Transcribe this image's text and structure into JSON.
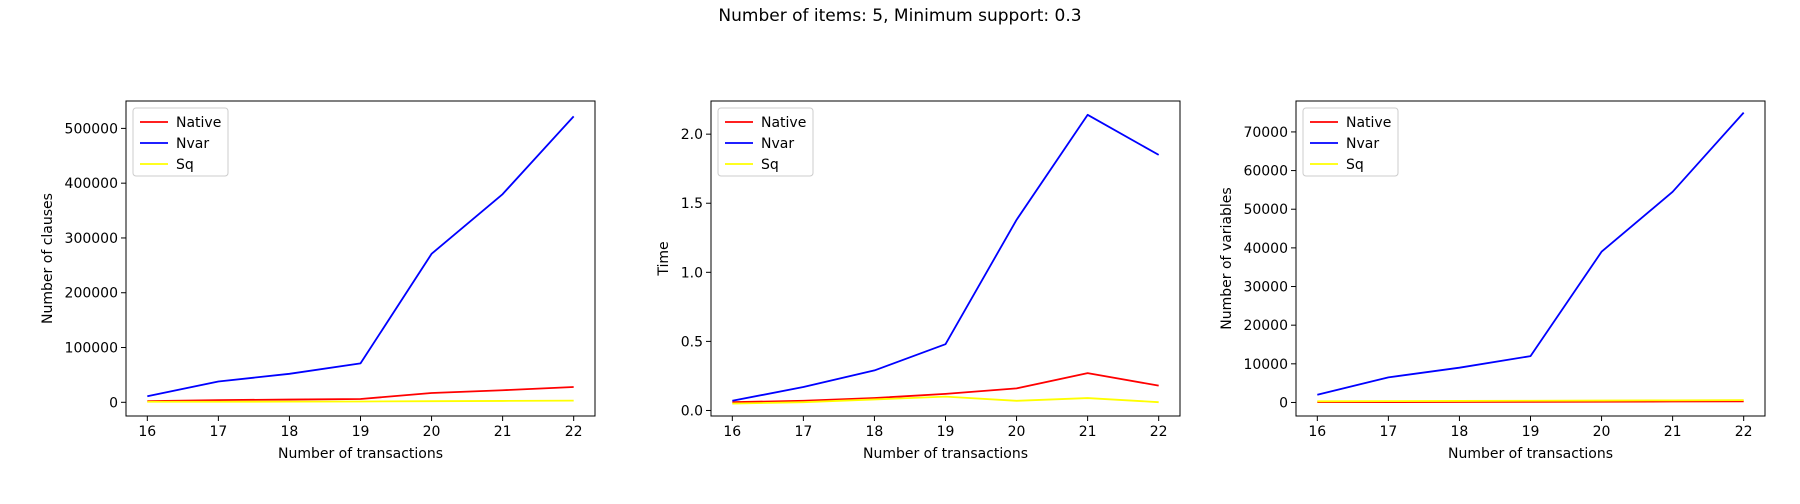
{
  "suptitle": "Number of items: 5, Minimum support: 0.3",
  "colors": {
    "Native": "#ff0000",
    "Nvar": "#0000ff",
    "Sq": "#ffff00"
  },
  "chart_data": [
    {
      "type": "line",
      "xlabel": "Number of transactions",
      "ylabel": "Number of clauses",
      "x": [
        16,
        17,
        18,
        19,
        20,
        21,
        22
      ],
      "xticks": [
        "16",
        "17",
        "18",
        "19",
        "20",
        "21",
        "22"
      ],
      "xlim": [
        15.7,
        22.3
      ],
      "yticks": [
        0,
        100000,
        200000,
        300000,
        400000,
        500000
      ],
      "ytick_labels": [
        "0",
        "100000",
        "200000",
        "300000",
        "400000",
        "500000"
      ],
      "ylim": [
        -25000,
        550000
      ],
      "legend": "upper-left",
      "series": [
        {
          "name": "Native",
          "values": [
            2000,
            4000,
            5000,
            6000,
            17000,
            22000,
            28000
          ]
        },
        {
          "name": "Nvar",
          "values": [
            11000,
            38000,
            52000,
            71000,
            271000,
            380000,
            522000
          ]
        },
        {
          "name": "Sq",
          "values": [
            1000,
            1000,
            1200,
            1500,
            2000,
            2500,
            3000
          ]
        }
      ]
    },
    {
      "type": "line",
      "xlabel": "Number of transactions",
      "ylabel": "Time",
      "x": [
        16,
        17,
        18,
        19,
        20,
        21,
        22
      ],
      "xticks": [
        "16",
        "17",
        "18",
        "19",
        "20",
        "21",
        "22"
      ],
      "xlim": [
        15.7,
        22.3
      ],
      "yticks": [
        0.0,
        0.5,
        1.0,
        1.5,
        2.0
      ],
      "ytick_labels": [
        "0.0",
        "0.5",
        "1.0",
        "1.5",
        "2.0"
      ],
      "ylim": [
        -0.04,
        2.24
      ],
      "legend": "upper-left",
      "series": [
        {
          "name": "Native",
          "values": [
            0.06,
            0.07,
            0.09,
            0.12,
            0.16,
            0.27,
            0.18
          ]
        },
        {
          "name": "Nvar",
          "values": [
            0.07,
            0.17,
            0.29,
            0.48,
            1.38,
            2.14,
            1.85
          ]
        },
        {
          "name": "Sq",
          "values": [
            0.05,
            0.06,
            0.08,
            0.1,
            0.07,
            0.09,
            0.06
          ]
        }
      ]
    },
    {
      "type": "line",
      "xlabel": "Number of transactions",
      "ylabel": "Number of variables",
      "x": [
        16,
        17,
        18,
        19,
        20,
        21,
        22
      ],
      "xticks": [
        "16",
        "17",
        "18",
        "19",
        "20",
        "21",
        "22"
      ],
      "xlim": [
        15.7,
        22.3
      ],
      "yticks": [
        0,
        10000,
        20000,
        30000,
        40000,
        50000,
        60000,
        70000
      ],
      "ytick_labels": [
        "0",
        "10000",
        "20000",
        "30000",
        "40000",
        "50000",
        "60000",
        "70000"
      ],
      "ylim": [
        -3500,
        78000
      ],
      "legend": "upper-left",
      "series": [
        {
          "name": "Native",
          "values": [
            100,
            100,
            120,
            150,
            200,
            250,
            300
          ]
        },
        {
          "name": "Nvar",
          "values": [
            2000,
            6500,
            9000,
            12000,
            39000,
            54500,
            75000
          ]
        },
        {
          "name": "Sq",
          "values": [
            300,
            350,
            400,
            450,
            500,
            550,
            600
          ]
        }
      ]
    }
  ]
}
